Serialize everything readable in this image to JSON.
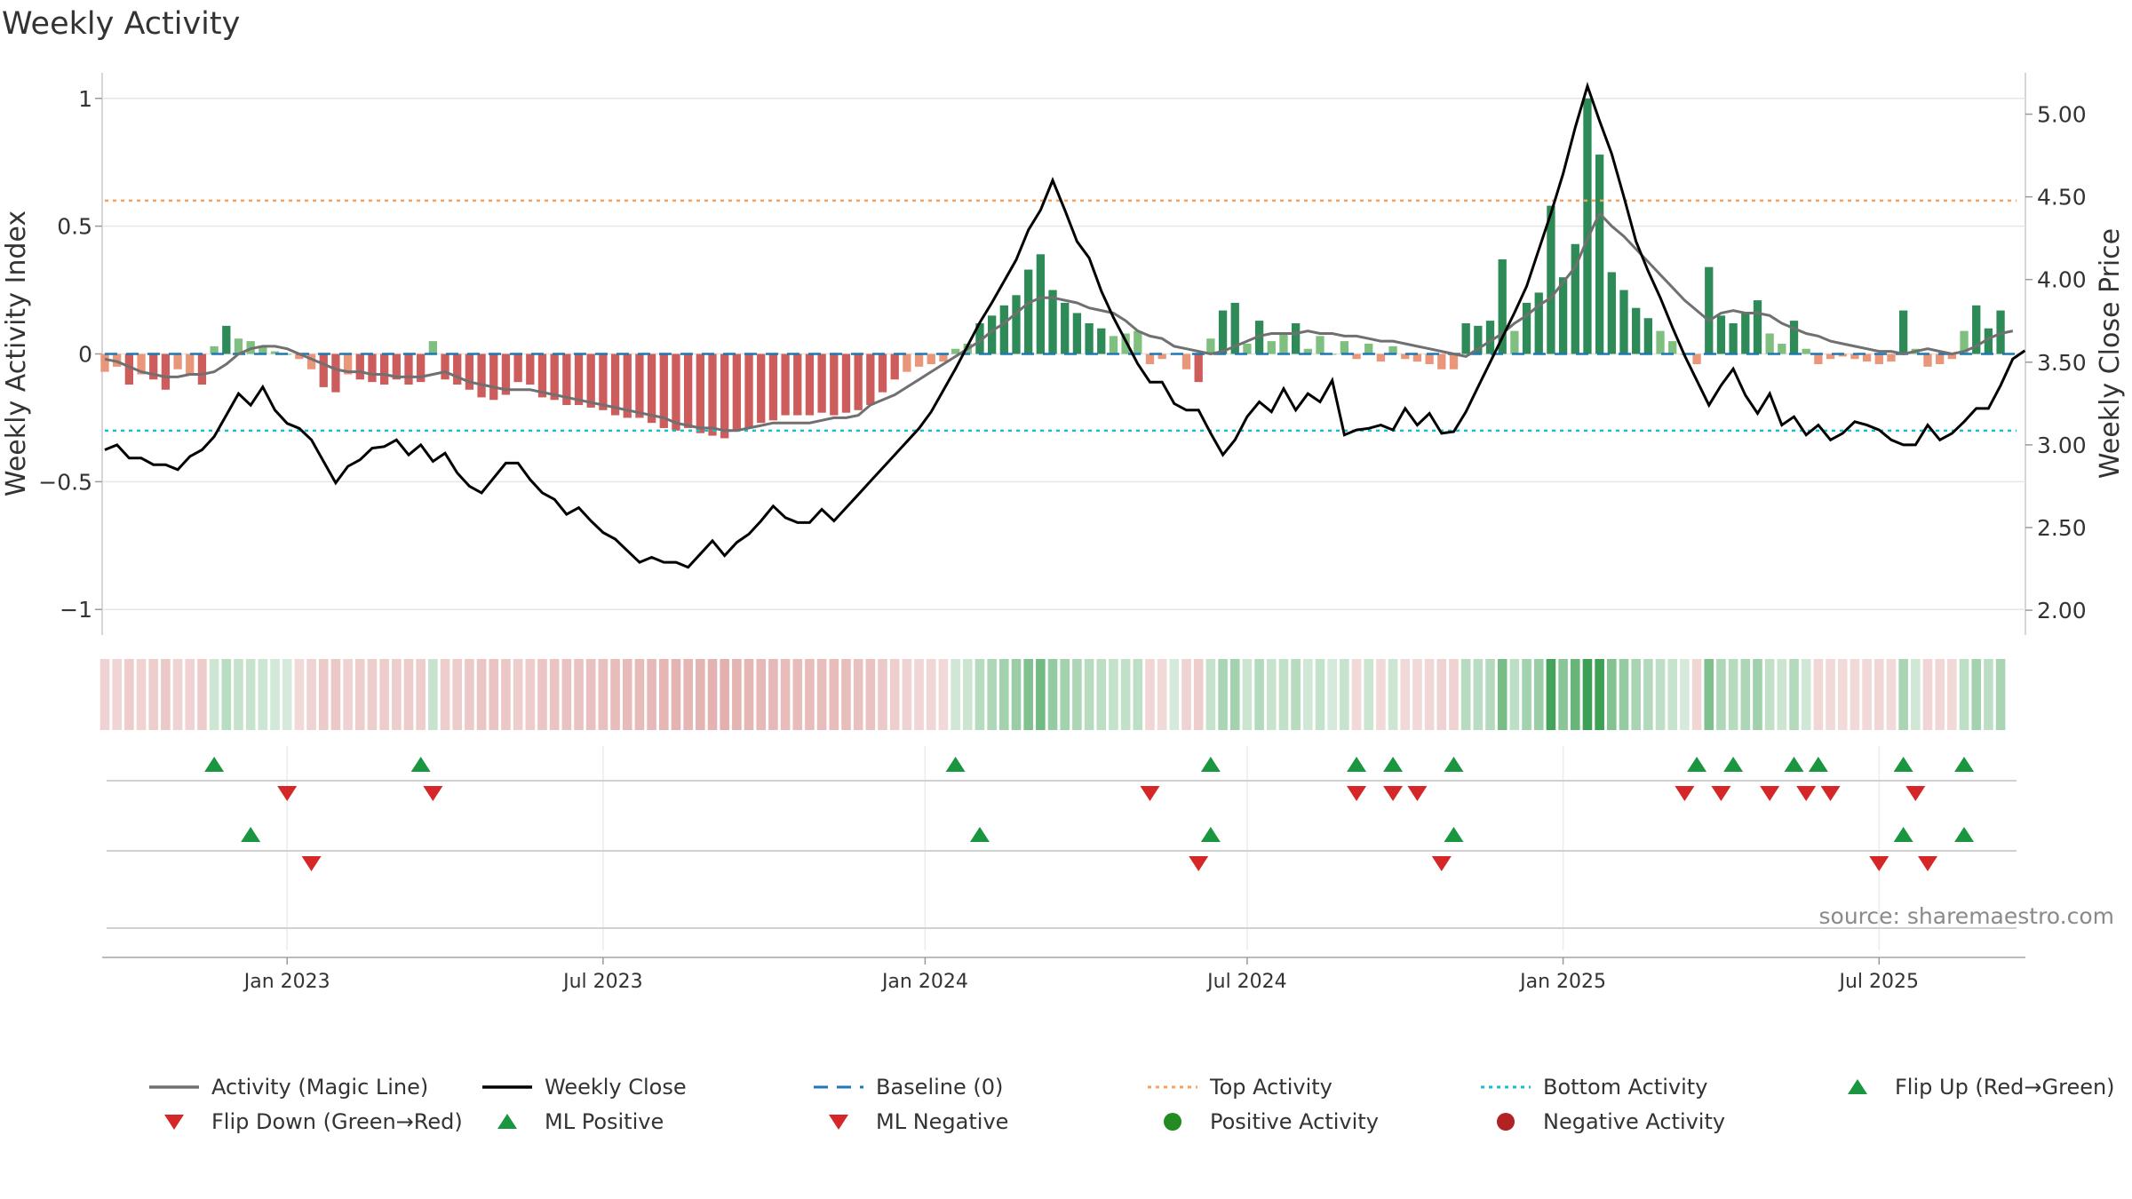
{
  "chart_data": {
    "type": "bar",
    "title": "Weekly Activity",
    "source": "source: sharemaestro.com",
    "ylabel_left": "Weekly Activity Index",
    "ylabel_right": "Weekly Close Price",
    "ylim_left": [
      -1.1,
      1.1
    ],
    "ylim_right": [
      1.85,
      5.25
    ],
    "yticks_left": [
      {
        "v": 1,
        "label": "1"
      },
      {
        "v": 0.5,
        "label": "0.5"
      },
      {
        "v": 0,
        "label": "0"
      },
      {
        "v": -0.5,
        "label": "−0.5"
      },
      {
        "v": -1,
        "label": "−1"
      }
    ],
    "yticks_right": [
      {
        "v": 5.0,
        "label": "5.00"
      },
      {
        "v": 4.5,
        "label": "4.50"
      },
      {
        "v": 4.0,
        "label": "4.00"
      },
      {
        "v": 3.5,
        "label": "3.50"
      },
      {
        "v": 3.0,
        "label": "3.00"
      },
      {
        "v": 2.5,
        "label": "2.50"
      },
      {
        "v": 2.0,
        "label": "2.00"
      }
    ],
    "x_range_weeks": [
      0,
      158
    ],
    "xticks": [
      {
        "week": 15,
        "label": "Jan 2023"
      },
      {
        "week": 41,
        "label": "Jul 2023"
      },
      {
        "week": 67.5,
        "label": "Jan 2024"
      },
      {
        "week": 94,
        "label": "Jul 2024"
      },
      {
        "week": 120,
        "label": "Jan 2025"
      },
      {
        "week": 146,
        "label": "Jul 2025"
      }
    ],
    "top_activity": 0.6,
    "bottom_activity": -0.3,
    "baseline": 0,
    "activity": [
      -0.07,
      -0.05,
      -0.12,
      -0.08,
      -0.1,
      -0.14,
      -0.06,
      -0.08,
      -0.12,
      0.03,
      0.11,
      0.06,
      0.05,
      0.03,
      0.01,
      0.0,
      -0.02,
      -0.06,
      -0.13,
      -0.15,
      -0.08,
      -0.1,
      -0.11,
      -0.12,
      -0.1,
      -0.12,
      -0.11,
      0.05,
      -0.1,
      -0.12,
      -0.14,
      -0.17,
      -0.18,
      -0.16,
      -0.11,
      -0.12,
      -0.17,
      -0.18,
      -0.2,
      -0.2,
      -0.21,
      -0.22,
      -0.24,
      -0.25,
      -0.25,
      -0.27,
      -0.29,
      -0.3,
      -0.29,
      -0.31,
      -0.32,
      -0.33,
      -0.3,
      -0.29,
      -0.27,
      -0.26,
      -0.24,
      -0.24,
      -0.24,
      -0.23,
      -0.24,
      -0.23,
      -0.22,
      -0.2,
      -0.15,
      -0.1,
      -0.07,
      -0.05,
      -0.04,
      -0.03,
      0.02,
      0.04,
      0.12,
      0.15,
      0.19,
      0.23,
      0.33,
      0.39,
      0.25,
      0.2,
      0.16,
      0.12,
      0.1,
      0.07,
      0.08,
      0.09,
      -0.04,
      -0.02,
      0.0,
      -0.06,
      -0.11,
      0.06,
      0.17,
      0.2,
      0.04,
      0.13,
      0.05,
      0.08,
      0.12,
      0.02,
      0.07,
      0.0,
      0.05,
      -0.02,
      0.04,
      -0.03,
      0.03,
      -0.02,
      -0.03,
      -0.04,
      -0.06,
      -0.06,
      0.12,
      0.11,
      0.13,
      0.37,
      0.09,
      0.2,
      0.24,
      0.58,
      0.3,
      0.43,
      1.0,
      0.78,
      0.32,
      0.25,
      0.18,
      0.14,
      0.09,
      0.05,
      0.0,
      -0.04,
      0.34,
      0.15,
      0.12,
      0.16,
      0.21,
      0.08,
      0.04,
      0.13,
      0.02,
      -0.04,
      -0.02,
      -0.01,
      -0.02,
      -0.03,
      -0.04,
      -0.03,
      0.17,
      0.02,
      -0.05,
      -0.04,
      -0.02,
      0.09,
      0.19,
      0.1,
      0.17
    ],
    "magic_line": [
      -0.02,
      -0.03,
      -0.05,
      -0.07,
      -0.08,
      -0.09,
      -0.09,
      -0.08,
      -0.08,
      -0.07,
      -0.04,
      0.0,
      0.02,
      0.03,
      0.03,
      0.02,
      0.0,
      -0.02,
      -0.04,
      -0.06,
      -0.07,
      -0.07,
      -0.08,
      -0.08,
      -0.09,
      -0.09,
      -0.09,
      -0.08,
      -0.07,
      -0.09,
      -0.11,
      -0.12,
      -0.13,
      -0.14,
      -0.14,
      -0.14,
      -0.15,
      -0.16,
      -0.17,
      -0.18,
      -0.19,
      -0.2,
      -0.21,
      -0.22,
      -0.23,
      -0.24,
      -0.25,
      -0.27,
      -0.28,
      -0.29,
      -0.29,
      -0.3,
      -0.3,
      -0.29,
      -0.28,
      -0.27,
      -0.27,
      -0.27,
      -0.27,
      -0.26,
      -0.25,
      -0.25,
      -0.24,
      -0.2,
      -0.18,
      -0.16,
      -0.13,
      -0.1,
      -0.07,
      -0.04,
      -0.01,
      0.02,
      0.05,
      0.09,
      0.12,
      0.16,
      0.2,
      0.22,
      0.22,
      0.21,
      0.2,
      0.18,
      0.17,
      0.16,
      0.13,
      0.09,
      0.07,
      0.06,
      0.03,
      0.02,
      0.01,
      0.0,
      0.01,
      0.03,
      0.05,
      0.07,
      0.08,
      0.08,
      0.08,
      0.09,
      0.08,
      0.08,
      0.07,
      0.07,
      0.06,
      0.05,
      0.05,
      0.04,
      0.03,
      0.02,
      0.01,
      0.0,
      -0.01,
      0.02,
      0.05,
      0.08,
      0.12,
      0.15,
      0.19,
      0.22,
      0.28,
      0.34,
      0.45,
      0.55,
      0.5,
      0.46,
      0.41,
      0.36,
      0.31,
      0.26,
      0.21,
      0.17,
      0.13,
      0.16,
      0.17,
      0.16,
      0.16,
      0.15,
      0.12,
      0.1,
      0.08,
      0.07,
      0.05,
      0.04,
      0.03,
      0.02,
      0.01,
      0.01,
      0.0,
      0.01,
      0.02,
      0.01,
      0.0,
      0.01,
      0.03,
      0.06,
      0.08,
      0.09
    ],
    "weekly_close": [
      2.97,
      3.0,
      2.92,
      2.92,
      2.88,
      2.88,
      2.85,
      2.93,
      2.97,
      3.05,
      3.18,
      3.31,
      3.24,
      3.35,
      3.21,
      3.13,
      3.1,
      3.03,
      2.9,
      2.77,
      2.87,
      2.91,
      2.98,
      2.99,
      3.03,
      2.94,
      3.0,
      2.9,
      2.95,
      2.83,
      2.75,
      2.71,
      2.8,
      2.89,
      2.89,
      2.79,
      2.71,
      2.67,
      2.58,
      2.62,
      2.54,
      2.47,
      2.43,
      2.36,
      2.29,
      2.32,
      2.29,
      2.29,
      2.26,
      2.34,
      2.42,
      2.33,
      2.41,
      2.46,
      2.54,
      2.63,
      2.56,
      2.53,
      2.53,
      2.61,
      2.54,
      2.62,
      2.7,
      2.78,
      2.86,
      2.94,
      3.02,
      3.1,
      3.2,
      3.33,
      3.46,
      3.6,
      3.74,
      3.86,
      3.99,
      4.12,
      4.3,
      4.42,
      4.6,
      4.42,
      4.23,
      4.13,
      3.93,
      3.77,
      3.63,
      3.49,
      3.38,
      3.38,
      3.25,
      3.21,
      3.21,
      3.07,
      2.94,
      3.03,
      3.17,
      3.26,
      3.2,
      3.34,
      3.21,
      3.31,
      3.26,
      3.39,
      3.06,
      3.09,
      3.1,
      3.12,
      3.09,
      3.22,
      3.12,
      3.19,
      3.07,
      3.08,
      3.2,
      3.35,
      3.5,
      3.65,
      3.8,
      3.96,
      4.18,
      4.4,
      4.64,
      4.92,
      5.17,
      4.96,
      4.76,
      4.5,
      4.23,
      4.05,
      3.89,
      3.71,
      3.54,
      3.39,
      3.24,
      3.36,
      3.46,
      3.3,
      3.19,
      3.31,
      3.12,
      3.17,
      3.06,
      3.12,
      3.03,
      3.07,
      3.14,
      3.12,
      3.09,
      3.03,
      3.0,
      3.0,
      3.12,
      3.03,
      3.07,
      3.14,
      3.22,
      3.22,
      3.36,
      3.52,
      3.57
    ],
    "flip_up_weeks": [
      9,
      26,
      70,
      91,
      103,
      106,
      111,
      131,
      134,
      139,
      141,
      148,
      153
    ],
    "flip_down_weeks": [
      15,
      27,
      86,
      103,
      106,
      108,
      130,
      133,
      137,
      140,
      142,
      149
    ],
    "ml_positive_weeks": [
      12,
      72,
      91,
      111,
      148,
      153
    ],
    "ml_negative_weeks": [
      17,
      90,
      110,
      146,
      150
    ],
    "legend_placement": "bottom",
    "legend": [
      {
        "label": "Activity (Magic Line)",
        "kind": "line",
        "color": "#707070"
      },
      {
        "label": "Weekly Close",
        "kind": "line",
        "color": "#000000"
      },
      {
        "label": "Baseline (0)",
        "kind": "dash",
        "color": "#1f77b4"
      },
      {
        "label": "Top Activity",
        "kind": "dot",
        "color": "#f4a261"
      },
      {
        "label": "Bottom Activity",
        "kind": "dot",
        "color": "#17becf"
      },
      {
        "label": "Flip Up (Red→Green)",
        "kind": "tri-up",
        "color": "#1a9641"
      },
      {
        "label": "Flip Down (Green→Red)",
        "kind": "tri-down",
        "color": "#d62728"
      },
      {
        "label": "ML Positive",
        "kind": "tri-up",
        "color": "#1a9641"
      },
      {
        "label": "ML Negative",
        "kind": "tri-down",
        "color": "#d62728"
      },
      {
        "label": "Positive Activity",
        "kind": "circle",
        "color": "#228b22"
      },
      {
        "label": "Negative Activity",
        "kind": "circle",
        "color": "#b22222"
      }
    ],
    "colors": {
      "pos_strong": "#2e8b57",
      "pos_light": "#7fbf7f",
      "neg_strong": "#cd5c5c",
      "neg_light": "#e9967a",
      "magic_line": "#707070",
      "close": "#000000",
      "baseline": "#1f77b4",
      "top": "#f4a261",
      "bottom": "#17becf",
      "marker_up": "#1a9641",
      "marker_down": "#d62728",
      "grid": "#e6e6e6"
    }
  }
}
